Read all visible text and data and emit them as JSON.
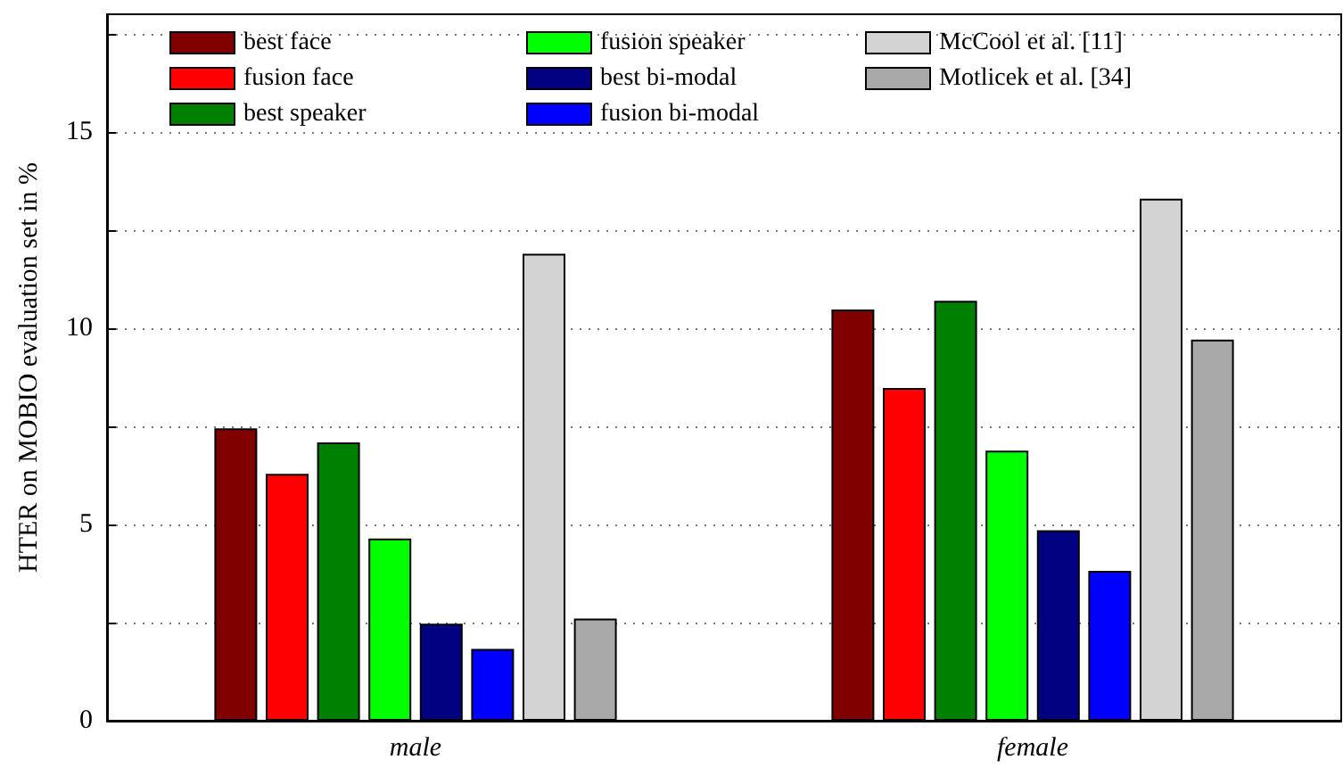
{
  "chart_data": {
    "type": "bar",
    "ylabel": "HTER on MOBIO evaluation set in %",
    "categories": [
      "male",
      "female"
    ],
    "series": [
      {
        "name": "best face",
        "color": "#800000",
        "values": [
          7.45,
          10.48
        ]
      },
      {
        "name": "fusion face",
        "color": "#ff0000",
        "values": [
          6.29,
          8.48
        ]
      },
      {
        "name": "best speaker",
        "color": "#008000",
        "values": [
          7.09,
          10.7
        ]
      },
      {
        "name": "fusion speaker",
        "color": "#00ff00",
        "values": [
          4.64,
          6.88
        ]
      },
      {
        "name": "best bi-modal",
        "color": "#000080",
        "values": [
          2.47,
          4.85
        ]
      },
      {
        "name": "fusion bi-modal",
        "color": "#0000ff",
        "values": [
          1.83,
          3.82
        ]
      },
      {
        "name": "McCool et al. [11]",
        "color": "#d3d3d3",
        "values": [
          11.9,
          13.3
        ]
      },
      {
        "name": "Motlicek et al. [34]",
        "color": "#a9a9a9",
        "values": [
          2.6,
          9.71
        ]
      }
    ],
    "ylim": [
      0,
      18
    ],
    "yticks": [
      0,
      {
        "value": 2.5,
        "label": null
      },
      5,
      {
        "value": 7.5,
        "label": null
      },
      10,
      {
        "value": 12.5,
        "label": null
      },
      15,
      {
        "value": 17.5,
        "label": null
      }
    ],
    "grid": "y",
    "legend": "top"
  }
}
